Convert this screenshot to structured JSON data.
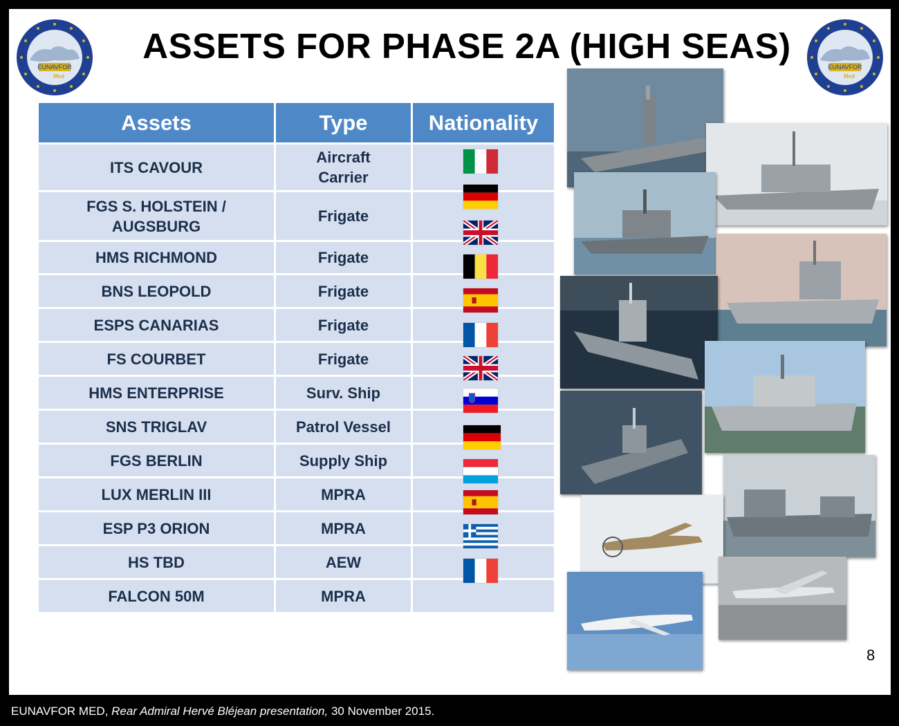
{
  "header": {
    "title": "ASSETS FOR PHASE 2A (HIGH SEAS)",
    "logo_text_top": "EUNAVFOR",
    "logo_text_bottom": "Med"
  },
  "table": {
    "headers": [
      "Assets",
      "Type",
      "Nationality"
    ],
    "rows": [
      {
        "asset": "ITS CAVOUR",
        "type": "Aircraft Carrier"
      },
      {
        "asset": "FGS S. HOLSTEIN / AUGSBURG",
        "type": "Frigate"
      },
      {
        "asset": "HMS RICHMOND",
        "type": "Frigate"
      },
      {
        "asset": "BNS LEOPOLD",
        "type": "Frigate"
      },
      {
        "asset": "ESPS CANARIAS",
        "type": "Frigate"
      },
      {
        "asset": "FS COURBET",
        "type": "Frigate"
      },
      {
        "asset": "HMS ENTERPRISE",
        "type": "Surv. Ship"
      },
      {
        "asset": "SNS TRIGLAV",
        "type": "Patrol Vessel"
      },
      {
        "asset": "FGS BERLIN",
        "type": "Supply Ship"
      },
      {
        "asset": "LUX MERLIN III",
        "type": "MPRA"
      },
      {
        "asset": "ESP P3 ORION",
        "type": "MPRA"
      },
      {
        "asset": "HS TBD",
        "type": "AEW"
      },
      {
        "asset": "FALCON 50M",
        "type": "MPRA"
      }
    ]
  },
  "flags": [
    "italy",
    "germany",
    "united-kingdom",
    "belgium",
    "spain",
    "france",
    "united-kingdom",
    "slovenia",
    "germany",
    "luxembourg",
    "spain",
    "greece",
    "france"
  ],
  "photos": [
    "aircraft-carrier",
    "frigate",
    "frigate",
    "frigate",
    "frigate",
    "patrol-vessel",
    "survey-ship",
    "supply-ship",
    "maritime-patrol-aircraft",
    "falcon-50-jet",
    "p3-orion-aircraft"
  ],
  "page_number": "8",
  "footer": {
    "org": "EUNAVFOR MED, ",
    "presentation": "Rear Admiral Hervé Bléjean presentation,",
    "date": " 30 November 2015."
  },
  "colors": {
    "header_blue": "#4f88c6",
    "row_fill": "#d6dfef",
    "row_text": "#1b2f4b",
    "logo_blue": "#1f3f93",
    "logo_gold": "#d9b21f"
  }
}
